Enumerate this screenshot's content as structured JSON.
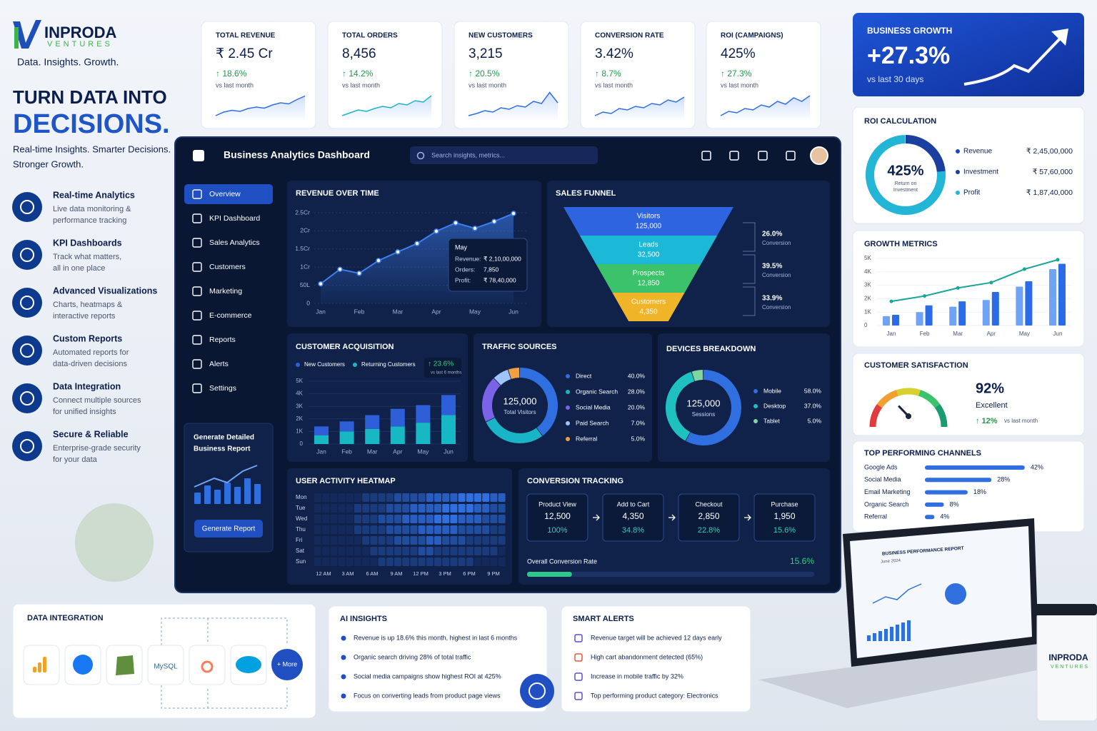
{
  "brand": {
    "name": "INPRODA",
    "sub": "VENTURES",
    "tagline": "Data. Insights. Growth."
  },
  "hero": {
    "headline": "TURN DATA INTO",
    "highlight": "DECISIONS.",
    "lines": [
      "Real-time Insights. Smarter Decisions.",
      "Stronger Growth."
    ]
  },
  "features": [
    {
      "title": "Real-time Analytics",
      "lines": [
        "Live data monitoring &",
        "performance tracking"
      ]
    },
    {
      "title": "KPI Dashboards",
      "lines": [
        "Track what matters,",
        "all in one place"
      ]
    },
    {
      "title": "Advanced Visualizations",
      "lines": [
        "Charts, heatmaps &",
        "interactive reports"
      ]
    },
    {
      "title": "Custom Reports",
      "lines": [
        "Automated reports for",
        "data-driven decisions"
      ]
    },
    {
      "title": "Data Integration",
      "lines": [
        "Connect multiple sources",
        "for unified insights"
      ]
    },
    {
      "title": "Secure & Reliable",
      "lines": [
        "Enterprise-grade security",
        "for your data"
      ]
    }
  ],
  "kpis": [
    {
      "title": "TOTAL REVENUE",
      "value": "₹ 2.45 Cr",
      "change": "↑ 18.6%",
      "note": "vs last month",
      "trend": [
        1,
        2,
        2.5,
        2.2,
        3,
        3.4,
        3.1,
        4,
        4.6,
        4.3,
        5.5,
        6.5
      ]
    },
    {
      "title": "TOTAL ORDERS",
      "value": "8,456",
      "change": "↑ 14.2%",
      "note": "vs last month",
      "trend": [
        1,
        1.8,
        2.6,
        2.2,
        3,
        3.6,
        3.2,
        4.4,
        4,
        5.2,
        4.8,
        6.6
      ]
    },
    {
      "title": "NEW CUSTOMERS",
      "value": "3,215",
      "change": "↑ 20.5%",
      "note": "vs last month",
      "trend": [
        1,
        1.6,
        2.4,
        2,
        3.2,
        2.8,
        3.8,
        3.4,
        5,
        4.4,
        7.5,
        4.6
      ]
    },
    {
      "title": "CONVERSION RATE",
      "value": "3.42%",
      "change": "↑ 8.7%",
      "note": "vs last month",
      "trend": [
        1,
        2,
        1.6,
        3,
        2.6,
        3.6,
        3.2,
        4.4,
        4,
        5.4,
        4.8,
        6.2
      ]
    },
    {
      "title": "ROI (CAMPAIGNS)",
      "value": "425%",
      "change": "↑ 27.3%",
      "note": "vs last month",
      "trend": [
        1,
        2.2,
        1.8,
        3,
        2.6,
        4,
        3.4,
        5,
        4.2,
        6,
        5,
        6.6
      ]
    }
  ],
  "business_growth": {
    "title": "BUSINESS GROWTH",
    "value": "+27.3%",
    "note": "vs last 30 days"
  },
  "dashboard": {
    "title": "Business Analytics Dashboard",
    "search": "Search insights, metrics...",
    "nav": [
      "Overview",
      "KPI Dashboard",
      "Sales Analytics",
      "Customers",
      "Marketing",
      "E-commerce",
      "Reports",
      "Alerts",
      "Settings"
    ],
    "report": {
      "lines": [
        "Generate Detailed",
        "Business Report"
      ],
      "button": "Generate Report"
    }
  },
  "revenue": {
    "title": "REVENUE OVER TIME",
    "categories": [
      "Jan",
      null,
      "Feb",
      null,
      "Mar",
      null,
      "Apr",
      null,
      "May",
      null,
      "Jun"
    ],
    "values": [
      0.54,
      0.94,
      0.83,
      1.18,
      1.42,
      1.65,
      1.99,
      2.22,
      2.07,
      2.26,
      2.48
    ],
    "color": "#3d7ef0",
    "ylim": [
      0,
      2.5
    ],
    "yticks": [
      0,
      {
        "value": 0.5,
        "label": "50L"
      },
      {
        "value": 1,
        "label": "1Cr"
      },
      {
        "value": 1.5,
        "label": "1.5Cr"
      },
      {
        "value": 2,
        "label": "2Cr"
      },
      {
        "value": 2.5,
        "label": "2.5Cr"
      }
    ],
    "tooltip": {
      "title": "May",
      "rows": [
        [
          "Revenue:",
          "₹ 2,10,00,000"
        ],
        [
          "Orders:",
          "7,850"
        ],
        [
          "Profit:",
          "₹ 78,40,000"
        ]
      ]
    }
  },
  "funnel": {
    "title": "SALES FUNNEL",
    "stages": [
      {
        "name": "Visitors",
        "value": "125,000",
        "color": "#2f64e0"
      },
      {
        "name": "Leads",
        "value": "32,500",
        "color": "#1cb8d8"
      },
      {
        "name": "Prospects",
        "value": "12,850",
        "color": "#3cc26a"
      },
      {
        "name": "Customers",
        "value": "4,350",
        "color": "#f0b429"
      }
    ],
    "conversions": [
      {
        "value": "26.0%",
        "note": "Conversion"
      },
      {
        "value": "39.5%",
        "note": "Conversion"
      },
      {
        "value": "33.9%",
        "note": "Conversion"
      }
    ]
  },
  "acquisition": {
    "title": "CUSTOMER ACQUISITION",
    "categories": [
      "Jan",
      "Feb",
      "Mar",
      "Apr",
      "May",
      "Jun"
    ],
    "series": [
      {
        "name": "New Customers",
        "color": "#2f5fd8",
        "values": [
          0.7,
          0.8,
          1.1,
          1.4,
          1.4,
          1.6
        ]
      },
      {
        "name": "Returning Customers",
        "color": "#17b8c4",
        "values": [
          0.7,
          1.0,
          1.2,
          1.4,
          1.7,
          2.3
        ]
      }
    ],
    "ylim": [
      0,
      5
    ],
    "yticks": [
      0,
      {
        "value": 1,
        "label": "1K"
      },
      {
        "value": 2,
        "label": "2K"
      },
      {
        "value": 3,
        "label": "3K"
      },
      {
        "value": 4,
        "label": "4K"
      },
      {
        "value": 5,
        "label": "5K"
      }
    ],
    "badge": {
      "change": "↑ 23.6%",
      "note": "vs last 6 months"
    }
  },
  "traffic": {
    "title": "TRAFFIC SOURCES",
    "center": "125,000",
    "center_note": "Total Visitors",
    "categories": [
      "Direct",
      "Organic Search",
      "Social Media",
      "Paid Search",
      "Referral"
    ],
    "values": [
      40,
      28,
      20,
      7,
      5
    ],
    "value_labels": [
      "40.0%",
      "28.0%",
      "20.0%",
      "7.0%",
      "5.0%"
    ],
    "colors": [
      "#2f6fe0",
      "#19b5c7",
      "#7a63e6",
      "#9ec5ff",
      "#f0a040"
    ]
  },
  "devices": {
    "title": "DEVICES BREAKDOWN",
    "center": "125,000",
    "center_note": "Sessions",
    "categories": [
      "Mobile",
      "Desktop",
      "Tablet"
    ],
    "values": [
      58,
      37,
      5
    ],
    "value_labels": [
      "58.0%",
      "37.0%",
      "5.0%"
    ],
    "colors": [
      "#2f6fe0",
      "#1fc1c0",
      "#7fd6a0"
    ]
  },
  "heatmap": {
    "title": "USER ACTIVITY HEATMAP",
    "rows": [
      "Mon",
      "Tue",
      "Wed",
      "Thu",
      "Fri",
      "Sat",
      "Sun"
    ],
    "cols": [
      "12 AM",
      "3 AM",
      "6 AM",
      "9 AM",
      "12 PM",
      "3 PM",
      "6 PM",
      "9 PM"
    ],
    "values": [
      [
        0,
        0,
        0,
        0,
        0,
        0,
        1,
        1,
        1,
        1,
        2,
        2,
        2,
        2,
        3,
        3,
        3,
        3,
        4,
        4,
        4,
        4,
        3,
        3
      ],
      [
        0,
        0,
        0,
        0,
        0,
        1,
        1,
        1,
        1,
        2,
        2,
        2,
        3,
        3,
        3,
        3,
        4,
        4,
        4,
        4,
        3,
        3,
        2,
        2
      ],
      [
        0,
        0,
        0,
        0,
        0,
        1,
        1,
        1,
        2,
        2,
        2,
        3,
        3,
        3,
        3,
        4,
        4,
        4,
        3,
        3,
        3,
        2,
        2,
        2
      ],
      [
        0,
        0,
        0,
        0,
        0,
        1,
        1,
        1,
        1,
        2,
        2,
        2,
        2,
        3,
        3,
        3,
        3,
        3,
        2,
        2,
        2,
        2,
        1,
        1
      ],
      [
        0,
        0,
        0,
        0,
        0,
        0,
        1,
        1,
        1,
        1,
        2,
        2,
        2,
        2,
        3,
        3,
        2,
        2,
        2,
        1,
        1,
        1,
        1,
        1
      ],
      [
        0,
        0,
        0,
        0,
        0,
        0,
        0,
        1,
        1,
        1,
        1,
        1,
        1,
        2,
        2,
        1,
        1,
        1,
        1,
        1,
        1,
        1,
        1,
        0
      ],
      [
        0,
        0,
        0,
        0,
        0,
        0,
        0,
        0,
        1,
        1,
        1,
        1,
        1,
        1,
        1,
        1,
        1,
        1,
        1,
        1,
        0,
        0,
        0,
        0
      ]
    ]
  },
  "conversion": {
    "title": "CONVERSION TRACKING",
    "steps": [
      {
        "name": "Product View",
        "value": "12,500",
        "rate": "100%"
      },
      {
        "name": "Add to Cart",
        "value": "4,350",
        "rate": "34.8%"
      },
      {
        "name": "Checkout",
        "value": "2,850",
        "rate": "22.8%"
      },
      {
        "name": "Purchase",
        "value": "1,950",
        "rate": "15.6%"
      }
    ],
    "overall": {
      "label": "Overall Conversion Rate",
      "value": 15.6,
      "value_label": "15.6%"
    }
  },
  "roi": {
    "title": "ROI CALCULATION",
    "center": "425%",
    "center_note": [
      "Return on",
      "Investment"
    ],
    "items": [
      {
        "name": "Revenue",
        "value": 24500000,
        "label": "₹ 2,45,00,000",
        "color": "#1b48b8"
      },
      {
        "name": "Investment",
        "value": 5760000,
        "label": "₹ 57,60,000",
        "color": "#1b3f9e"
      },
      {
        "name": "Profit",
        "value": 18740000,
        "label": "₹ 1,87,40,000",
        "color": "#22b5d6"
      }
    ]
  },
  "growth": {
    "title": "GROWTH METRICS",
    "categories": [
      "Jan",
      "Feb",
      "Mar",
      "Apr",
      "May",
      "Jun"
    ],
    "series": [
      {
        "color": "#6fa3f5",
        "values": [
          0.7,
          1.0,
          1.4,
          1.9,
          2.9,
          4.2
        ]
      },
      {
        "color": "#2b6be8",
        "values": [
          0.8,
          1.5,
          1.8,
          2.5,
          3.3,
          4.6
        ]
      }
    ],
    "line": {
      "color": "#1aa59a",
      "values": [
        1.8,
        2.2,
        2.8,
        3.2,
        4.2,
        4.9
      ]
    },
    "ylim": [
      0,
      5
    ],
    "yticks": [
      0,
      {
        "value": 1,
        "label": "1K"
      },
      {
        "value": 2,
        "label": "2K"
      },
      {
        "value": 3,
        "label": "3K"
      },
      {
        "value": 4,
        "label": "4K"
      },
      {
        "value": 5,
        "label": "5K"
      }
    ]
  },
  "satisfaction": {
    "title": "CUSTOMER SATISFACTION",
    "value": 92,
    "value_label": "92%",
    "rating": "Excellent",
    "change": "↑ 12%",
    "note": "vs last month"
  },
  "channels": {
    "title": "TOP PERFORMING CHANNELS",
    "color": "#2f6fe0",
    "items": [
      {
        "name": "Google Ads",
        "value": 42,
        "label": "42%"
      },
      {
        "name": "Social Media",
        "value": 28,
        "label": "28%"
      },
      {
        "name": "Email Marketing",
        "value": 18,
        "label": "18%"
      },
      {
        "name": "Organic Search",
        "value": 8,
        "label": "8%"
      },
      {
        "name": "Referral",
        "value": 4,
        "label": "4%"
      }
    ]
  },
  "integration": {
    "title": "DATA INTEGRATION",
    "mysql": "MySQL",
    "more": "+ More"
  },
  "insights": {
    "title": "AI INSIGHTS",
    "items": [
      "Revenue is up 18.6% this month, highest in last 6 months",
      "Organic search driving 28% of total traffic",
      "Social media campaigns show highest ROI at 425%",
      "Focus on converting leads from product page views"
    ]
  },
  "alerts": {
    "title": "SMART ALERTS",
    "items": [
      "Revenue target will be achieved 12 days early",
      "High cart abandonment detected (65%)",
      "Increase in mobile traffic by 32%",
      "Top performing product category: Electronics"
    ]
  },
  "laptop": {
    "title": "BUSINESS PERFORMANCE REPORT",
    "date": "June 2024"
  }
}
